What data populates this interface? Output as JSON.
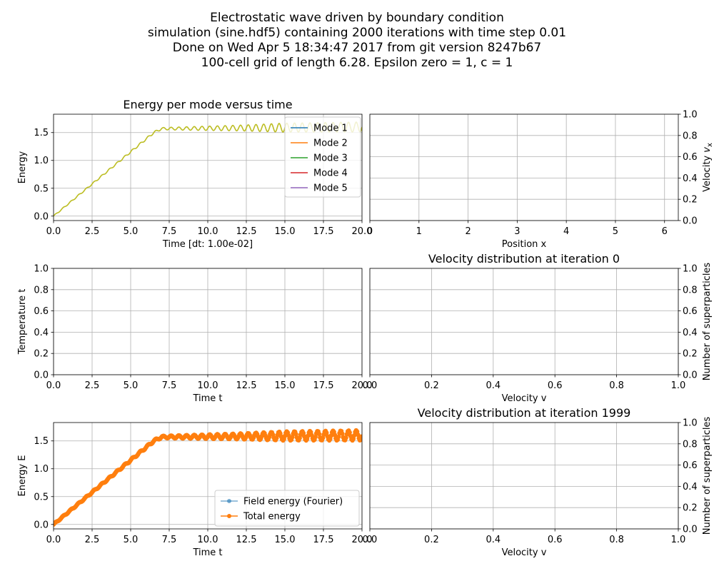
{
  "figure": {
    "title_lines": [
      "Electrostatic wave driven by boundary condition",
      "simulation (sine.hdf5) containing 2000 iterations with time step 0.01",
      "Done on Wed Apr  5 18:34:47 2017 from git version 8247b67",
      "100-cell grid of length 6.28. Epsilon zero = 1, c = 1"
    ]
  },
  "chart_data": [
    {
      "id": "energy-per-mode",
      "type": "line",
      "title": "Energy per mode versus time",
      "xlabel": "Time [dt: 1.00e-02]",
      "ylabel": "Energy",
      "xlim": [
        0,
        20
      ],
      "ylim": [
        -0.08,
        1.83
      ],
      "xticks": [
        "0.0",
        "2.5",
        "5.0",
        "7.5",
        "10.0",
        "12.5",
        "15.0",
        "17.5",
        "20.0"
      ],
      "yticks": [
        "0.0",
        "0.5",
        "1.0",
        "1.5"
      ],
      "grid": true,
      "legend_position": "upper right",
      "series": [
        {
          "name": "Mode 1",
          "color": "#1f77b4"
        },
        {
          "name": "Mode 2",
          "color": "#ff7f0e"
        },
        {
          "name": "Mode 3",
          "color": "#2ca02c"
        },
        {
          "name": "Mode 4",
          "color": "#d62728"
        },
        {
          "name": "Mode 5",
          "color": "#9467bd"
        }
      ],
      "visible_series_color": "#bcbd22",
      "trend": {
        "x": [
          0,
          6.5,
          7,
          20
        ],
        "y": [
          0.0,
          1.5,
          1.57,
          1.6
        ]
      },
      "oscillation_amplitude": {
        "x": [
          0,
          7,
          12,
          15,
          20
        ],
        "y": [
          0.01,
          0.02,
          0.05,
          0.08,
          0.09
        ]
      },
      "oscillation_period": 0.5
    },
    {
      "id": "phase-space",
      "type": "scatter",
      "title": "",
      "xlabel": "Position x",
      "ylabel": "Velocity v_x",
      "xlim": [
        0,
        6.28
      ],
      "ylim": [
        0,
        1
      ],
      "xticks": [
        "0",
        "1",
        "2",
        "3",
        "4",
        "5",
        "6"
      ],
      "yticks": [
        "0.0",
        "0.2",
        "0.4",
        "0.6",
        "0.8",
        "1.0"
      ],
      "y_axis_side": "right",
      "grid": true,
      "points": []
    },
    {
      "id": "temperature",
      "type": "line",
      "title": "",
      "xlabel": "Time t",
      "ylabel": "Temperature t",
      "xlim": [
        0,
        20
      ],
      "ylim": [
        0,
        1
      ],
      "xticks": [
        "0.0",
        "2.5",
        "5.0",
        "7.5",
        "10.0",
        "12.5",
        "15.0",
        "17.5",
        "20.0"
      ],
      "yticks": [
        "0.0",
        "0.2",
        "0.4",
        "0.6",
        "0.8",
        "1.0"
      ],
      "grid": true,
      "series": []
    },
    {
      "id": "velocity-dist-0",
      "type": "bar",
      "title": "Velocity distribution at iteration 0",
      "xlabel": "Velocity v",
      "ylabel": "Number of superparticles",
      "xlim": [
        0,
        1
      ],
      "ylim": [
        0,
        1
      ],
      "xticks": [
        "0.0",
        "0.2",
        "0.4",
        "0.6",
        "0.8",
        "1.0"
      ],
      "yticks": [
        "0.0",
        "0.2",
        "0.4",
        "0.6",
        "0.8",
        "1.0"
      ],
      "y_axis_side": "right",
      "grid": true,
      "values": []
    },
    {
      "id": "energy-total",
      "type": "line",
      "title": "",
      "xlabel": "Time t",
      "ylabel": "Energy E",
      "xlim": [
        0,
        20
      ],
      "ylim": [
        -0.08,
        1.83
      ],
      "xticks": [
        "0.0",
        "2.5",
        "5.0",
        "7.5",
        "10.0",
        "12.5",
        "15.0",
        "17.5",
        "20.0"
      ],
      "yticks": [
        "0.0",
        "0.5",
        "1.0",
        "1.5"
      ],
      "grid": true,
      "legend_position": "lower right",
      "series": [
        {
          "name": "Field energy (Fourier)",
          "color": "#1f77b4",
          "marker": "dot",
          "alpha": 0.6
        },
        {
          "name": "Total energy",
          "color": "#ff7f0e",
          "marker": "dot"
        }
      ],
      "trend": {
        "x": [
          0,
          6.5,
          7,
          20
        ],
        "y": [
          0.0,
          1.5,
          1.57,
          1.6
        ]
      },
      "oscillation_amplitude": {
        "x": [
          0,
          7,
          12,
          15,
          20
        ],
        "y": [
          0.01,
          0.02,
          0.05,
          0.08,
          0.09
        ]
      },
      "oscillation_period": 0.5,
      "sample_step": 0.06
    },
    {
      "id": "velocity-dist-1999",
      "type": "bar",
      "title": "Velocity distribution at iteration 1999",
      "xlabel": "Velocity v",
      "ylabel": "Number of superparticles",
      "xlim": [
        0,
        1
      ],
      "ylim": [
        0,
        1
      ],
      "xticks": [
        "0.0",
        "0.2",
        "0.4",
        "0.6",
        "0.8",
        "1.0"
      ],
      "yticks": [
        "0.0",
        "0.2",
        "0.4",
        "0.6",
        "0.8",
        "1.0"
      ],
      "y_axis_side": "right",
      "grid": true,
      "values": []
    }
  ]
}
